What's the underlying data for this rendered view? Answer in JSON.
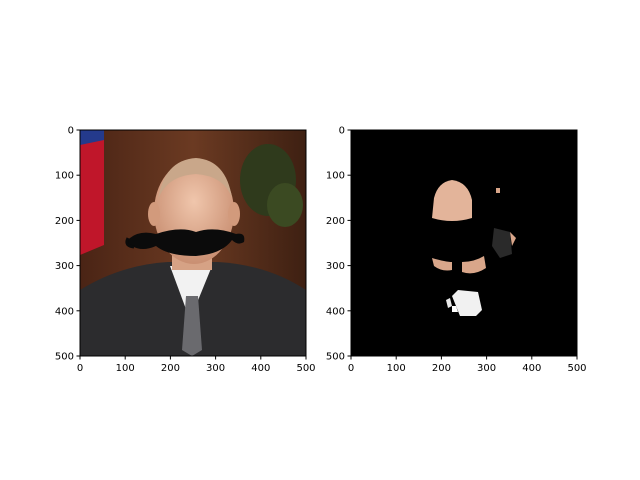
{
  "chart_data": [
    {
      "type": "image",
      "panel": "left",
      "description_role": "original photo with drawn mustache overlay",
      "xlim": [
        0,
        500
      ],
      "ylim": [
        500,
        0
      ],
      "xticks": [
        0,
        100,
        200,
        300,
        400,
        500
      ],
      "yticks": [
        0,
        100,
        200,
        300,
        400,
        500
      ],
      "xlabel": "",
      "ylabel": "",
      "title": ""
    },
    {
      "type": "image",
      "panel": "right",
      "description_role": "masked image: skin-colored regions shown, background black",
      "xlim": [
        0,
        500
      ],
      "ylim": [
        500,
        0
      ],
      "xticks": [
        0,
        100,
        200,
        300,
        400,
        500
      ],
      "yticks": [
        0,
        100,
        200,
        300,
        400,
        500
      ],
      "xlabel": "",
      "ylabel": "",
      "title": ""
    }
  ],
  "colors": {
    "suit": "#2c2c2e",
    "skin": "#e3b49a",
    "curtain": "#5a2e1c",
    "flag_red": "#c0162a",
    "flag_blue": "#243a8c",
    "mask_background": "#000000"
  }
}
